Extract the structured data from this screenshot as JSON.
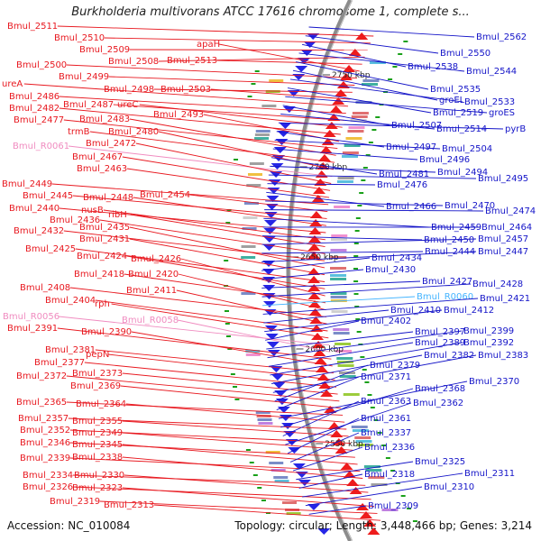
{
  "title": "Burkholderia multivorans ATCC 17616 chromosome 1, complete s...",
  "accession": "Accession: NC_010084",
  "topology": "Topology: circular; Length: 3,448,466 bp; Genes: 3,214",
  "colors": {
    "left_label": "#e8181f",
    "right_label": "#1414c8",
    "rna_left": "#f08cc0",
    "rna_right": "#44b4ff",
    "backbone": "#8c8c8c",
    "feature_red": "#ee1c1c",
    "feature_blue": "#2626e6",
    "marker_green": "#19a019"
  },
  "kbp_marks": [
    "2750 kbp",
    "2700 kbp",
    "2650 kbp",
    "2600 kbp",
    "2550 kbp"
  ],
  "left_labels": [
    "Bmul_2511",
    "Bmul_2510",
    "Bmul_2509",
    "Bmul_2508",
    "Bmul_2513",
    "apaH",
    "Bmul_2500",
    "Bmul_2499",
    "Bmul_2498",
    "Bmul_2503",
    "ureA",
    "Bmul_2486",
    "Bmul_2487",
    "ureC",
    "Bmul_2482",
    "Bmul_2493",
    "Bmul_2477",
    "Bmul_2483",
    "trmB",
    "Bmul_2480",
    "Bmul_R0061",
    "Bmul_2472",
    "Bmul_2467",
    "Bmul_2463",
    "Bmul_2449",
    "Bmul_2454",
    "Bmul_2445",
    "Bmul_2448",
    "Bmul_2440",
    "nusB",
    "ribH",
    "Bmul_2436",
    "Bmul_2432",
    "Bmul_2435",
    "Bmul_2431",
    "Bmul_2425",
    "Bmul_2424",
    "Bmul_2426",
    "Bmul_2418",
    "Bmul_2420",
    "Bmul_2408",
    "Bmul_2411",
    "Bmul_2404",
    "rph",
    "Bmul_R0056",
    "Bmul_R0058",
    "Bmul_2391",
    "Bmul_2390",
    "Bmul_2381",
    "pepN",
    "Bmul_2377",
    "Bmul_2373",
    "Bmul_2372",
    "Bmul_2369",
    "Bmul_2365",
    "Bmul_2364",
    "Bmul_2357",
    "Bmul_2355",
    "Bmul_2352",
    "Bmul_2349",
    "Bmul_2346",
    "Bmul_2345",
    "Bmul_2339",
    "Bmul_2338",
    "Bmul_2334",
    "Bmul_2330",
    "Bmul_2326",
    "Bmul_2323",
    "Bmul_2319",
    "Bmul_2313"
  ],
  "right_labels": [
    "Bmul_2562",
    "Bmul_2550",
    "Bmul_2538",
    "Bmul_2544",
    "Bmul_2535",
    "groEL",
    "Bmul_2533",
    "Bmul_2519",
    "groES",
    "Bmul_2507",
    "Bmul_2514",
    "pyrB",
    "Bmul_2497",
    "Bmul_2504",
    "Bmul_2496",
    "Bmul_2481",
    "Bmul_2494",
    "Bmul_2495",
    "Bmul_2476",
    "Bmul_2466",
    "Bmul_2470",
    "Bmul_2474",
    "Bmul_2459",
    "Bmul_2464",
    "Bmul_2450",
    "Bmul_2457",
    "Bmul_2444",
    "Bmul_2447",
    "Bmul_2434",
    "Bmul_2430",
    "Bmul_2427",
    "Bmul_2428",
    "Bmul_R0060",
    "Bmul_2421",
    "Bmul_2410",
    "Bmul_2412",
    "Bmul_2402",
    "Bmul_2397",
    "Bmul_2399",
    "Bmul_2389",
    "Bmul_2392",
    "Bmul_2382",
    "Bmul_2383",
    "Bmul_2379",
    "Bmul_2371",
    "Bmul_2370",
    "Bmul_2368",
    "Bmul_2363",
    "Bmul_2362",
    "Bmul_2361",
    "Bmul_2337",
    "Bmul_2336",
    "Bmul_2325",
    "Bmul_2318",
    "Bmul_2311",
    "Bmul_2310",
    "Bmul_2309"
  ]
}
